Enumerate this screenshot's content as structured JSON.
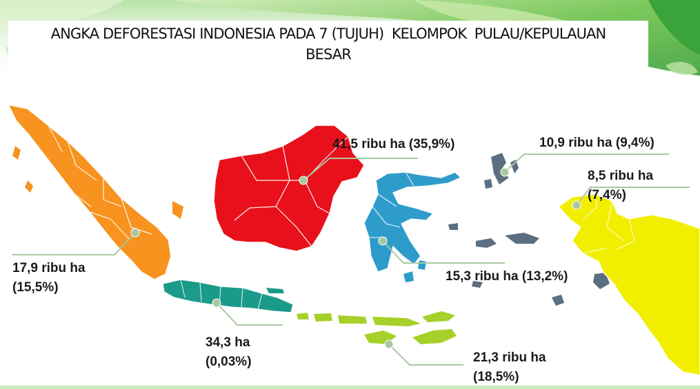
{
  "title": {
    "line1": "ANGKA DEFORESTASI INDONESIA PADA 7 (TUJUH)  KELOMPOK  PULAU/KEPULAUAN",
    "line2": "BESAR"
  },
  "colors": {
    "sumatera": "#f7931e",
    "kalimantan": "#e8101a",
    "sulawesi": "#2e9ccb",
    "jawa": "#1b9a8a",
    "bali_nusa_tenggara": "#a6d02a",
    "maluku": "#5c6f80",
    "papua": "#f2ee00",
    "leader_line": "#a9c8a1",
    "marker": "#a9c8a1",
    "green_accent": "#6cc24a"
  },
  "regions": [
    {
      "id": "sumatera",
      "line1": "17,9 ribu ha",
      "line2": "(15,5%)"
    },
    {
      "id": "kalimantan",
      "line1": "41,5 ribu ha (35,9%)",
      "line2": ""
    },
    {
      "id": "jawa",
      "line1": "34,3 ha",
      "line2": "(0,03%)"
    },
    {
      "id": "sulawesi",
      "line1": "15,3 ribu ha (13,2%)",
      "line2": ""
    },
    {
      "id": "bali_nusa_tenggara",
      "line1": "21,3 ribu ha",
      "line2": "(18,5%)"
    },
    {
      "id": "maluku",
      "line1": "10,9 ribu ha (9,4%)",
      "line2": ""
    },
    {
      "id": "papua",
      "line1": "8,5 ribu ha",
      "line2": "(7,4%)"
    }
  ]
}
